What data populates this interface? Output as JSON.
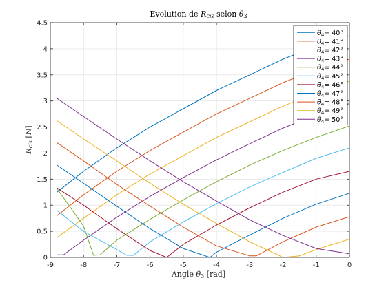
{
  "chart_data": {
    "type": "line",
    "title_parts": [
      "Evolution de ",
      "R",
      "cis",
      " selon ",
      "θ",
      "3"
    ],
    "xlabel_parts": [
      "Angle ",
      "θ",
      "3",
      " [rad]"
    ],
    "ylabel_parts": [
      "R",
      "cis",
      " [N]"
    ],
    "xlim": [
      -9,
      0
    ],
    "ylim": [
      0,
      4.5
    ],
    "xticks": [
      -9,
      -8,
      -7,
      -6,
      -5,
      -4,
      -3,
      -2,
      -1,
      0
    ],
    "xtick_labels": [
      "-9",
      "-8",
      "-7",
      "-6",
      "-5",
      "-4",
      "-3",
      "-2",
      "-1",
      "0"
    ],
    "yticks": [
      0,
      0.5,
      1,
      1.5,
      2,
      2.5,
      3,
      3.5,
      4,
      4.5
    ],
    "ytick_labels": [
      "0",
      "0.5",
      "1",
      "1.5",
      "2",
      "2.5",
      "3",
      "3.5",
      "4",
      "4.5"
    ],
    "grid": true,
    "legend_position": "top-right",
    "series": [
      {
        "name": "θ4= 40°",
        "label_prefix": "θ",
        "label_sub": "4",
        "label_suffix": "= 40°",
        "color": "#0072BD",
        "points": [
          [
            -8.8,
            1.25
          ],
          [
            -8,
            1.65
          ],
          [
            -7,
            2.1
          ],
          [
            -6,
            2.5
          ],
          [
            -5,
            2.85
          ],
          [
            -4,
            3.2
          ],
          [
            -3,
            3.5
          ],
          [
            -2,
            3.8
          ],
          [
            -1,
            4.05
          ],
          [
            0,
            4.25
          ]
        ]
      },
      {
        "name": "θ4= 41°",
        "label_prefix": "θ",
        "label_sub": "4",
        "label_suffix": "= 41°",
        "color": "#D95319",
        "points": [
          [
            -8.8,
            0.8
          ],
          [
            -8,
            1.2
          ],
          [
            -7,
            1.65
          ],
          [
            -6,
            2.05
          ],
          [
            -5,
            2.4
          ],
          [
            -4,
            2.75
          ],
          [
            -3,
            3.05
          ],
          [
            -2,
            3.35
          ],
          [
            -1,
            3.6
          ],
          [
            0,
            3.8
          ]
        ]
      },
      {
        "name": "θ4= 42°",
        "label_prefix": "θ",
        "label_sub": "4",
        "label_suffix": "= 42°",
        "color": "#EDB120",
        "points": [
          [
            -8.8,
            0.38
          ],
          [
            -8,
            0.75
          ],
          [
            -7,
            1.2
          ],
          [
            -6,
            1.6
          ],
          [
            -5,
            1.95
          ],
          [
            -4,
            2.3
          ],
          [
            -3,
            2.6
          ],
          [
            -2,
            2.9
          ],
          [
            -1,
            3.15
          ],
          [
            0,
            3.38
          ]
        ]
      },
      {
        "name": "θ4= 43°",
        "label_prefix": "θ",
        "label_sub": "4",
        "label_suffix": "= 43°",
        "color": "#7E2F8E",
        "points": [
          [
            -8.8,
            0.05
          ],
          [
            -8.6,
            0.05
          ],
          [
            -8,
            0.33
          ],
          [
            -7,
            0.77
          ],
          [
            -6,
            1.17
          ],
          [
            -5,
            1.53
          ],
          [
            -4,
            1.87
          ],
          [
            -3,
            2.18
          ],
          [
            -2,
            2.48
          ],
          [
            -1,
            2.73
          ],
          [
            0,
            2.95
          ]
        ]
      },
      {
        "name": "θ4= 44°",
        "label_prefix": "θ",
        "label_sub": "4",
        "label_suffix": "= 44°",
        "color": "#77AC30",
        "points": [
          [
            -8.8,
            1.32
          ],
          [
            -8,
            0.6
          ],
          [
            -7.7,
            0.04
          ],
          [
            -7.5,
            0.05
          ],
          [
            -7,
            0.33
          ],
          [
            -6,
            0.73
          ],
          [
            -5,
            1.1
          ],
          [
            -4,
            1.45
          ],
          [
            -3,
            1.77
          ],
          [
            -2,
            2.05
          ],
          [
            -1,
            2.3
          ],
          [
            0,
            2.52
          ]
        ]
      },
      {
        "name": "θ4= 45°",
        "label_prefix": "θ",
        "label_sub": "4",
        "label_suffix": "= 45°",
        "color": "#4DBEEE",
        "points": [
          [
            -8.8,
            0.9
          ],
          [
            -8,
            0.5
          ],
          [
            -7,
            0.15
          ],
          [
            -6.7,
            0.04
          ],
          [
            -6.5,
            0.04
          ],
          [
            -6,
            0.3
          ],
          [
            -5,
            0.68
          ],
          [
            -4,
            1.03
          ],
          [
            -3,
            1.35
          ],
          [
            -2,
            1.63
          ],
          [
            -1,
            1.9
          ],
          [
            0,
            2.1
          ]
        ]
      },
      {
        "name": "θ4= 46°",
        "label_prefix": "θ",
        "label_sub": "4",
        "label_suffix": "= 46°",
        "color": "#A2142F",
        "points": [
          [
            -8.8,
            1.33
          ],
          [
            -8,
            1.0
          ],
          [
            -7,
            0.55
          ],
          [
            -6,
            0.13
          ],
          [
            -5.5,
            0.0
          ],
          [
            -5,
            0.25
          ],
          [
            -4,
            0.62
          ],
          [
            -3,
            0.95
          ],
          [
            -2,
            1.25
          ],
          [
            -1,
            1.5
          ],
          [
            0,
            1.65
          ]
        ]
      },
      {
        "name": "θ4= 47°",
        "label_prefix": "θ",
        "label_sub": "4",
        "label_suffix": "= 47°",
        "color": "#0072BD",
        "points": [
          [
            -8.8,
            1.77
          ],
          [
            -8,
            1.42
          ],
          [
            -7,
            0.98
          ],
          [
            -6,
            0.55
          ],
          [
            -5,
            0.17
          ],
          [
            -4.2,
            0.0
          ],
          [
            -4,
            0.1
          ],
          [
            -3,
            0.43
          ],
          [
            -2,
            0.75
          ],
          [
            -1,
            1.02
          ],
          [
            0,
            1.23
          ]
        ]
      },
      {
        "name": "θ4= 48°",
        "label_prefix": "θ",
        "label_sub": "4",
        "label_suffix": "= 48°",
        "color": "#D95319",
        "points": [
          [
            -8.8,
            2.2
          ],
          [
            -8,
            1.85
          ],
          [
            -7,
            1.4
          ],
          [
            -6,
            0.98
          ],
          [
            -5,
            0.58
          ],
          [
            -4,
            0.22
          ],
          [
            -3,
            0.03
          ],
          [
            -2.8,
            0.03
          ],
          [
            -2,
            0.3
          ],
          [
            -1,
            0.58
          ],
          [
            0,
            0.78
          ]
        ]
      },
      {
        "name": "θ4= 49°",
        "label_prefix": "θ",
        "label_sub": "4",
        "label_suffix": "= 49°",
        "color": "#EDB120",
        "points": [
          [
            -8.8,
            2.62
          ],
          [
            -8,
            2.27
          ],
          [
            -7,
            1.85
          ],
          [
            -6,
            1.42
          ],
          [
            -5,
            1.02
          ],
          [
            -4,
            0.65
          ],
          [
            -3,
            0.3
          ],
          [
            -2,
            0.0
          ],
          [
            -1.5,
            0.03
          ],
          [
            -1,
            0.15
          ],
          [
            0,
            0.35
          ]
        ]
      },
      {
        "name": "θ4= 50°",
        "label_prefix": "θ",
        "label_sub": "4",
        "label_suffix": "= 50°",
        "color": "#7E2F8E",
        "points": [
          [
            -8.8,
            3.05
          ],
          [
            -8,
            2.7
          ],
          [
            -7,
            2.27
          ],
          [
            -6,
            1.85
          ],
          [
            -5,
            1.45
          ],
          [
            -4,
            1.08
          ],
          [
            -3,
            0.72
          ],
          [
            -2,
            0.42
          ],
          [
            -1,
            0.17
          ],
          [
            0,
            0.07
          ]
        ]
      }
    ]
  }
}
